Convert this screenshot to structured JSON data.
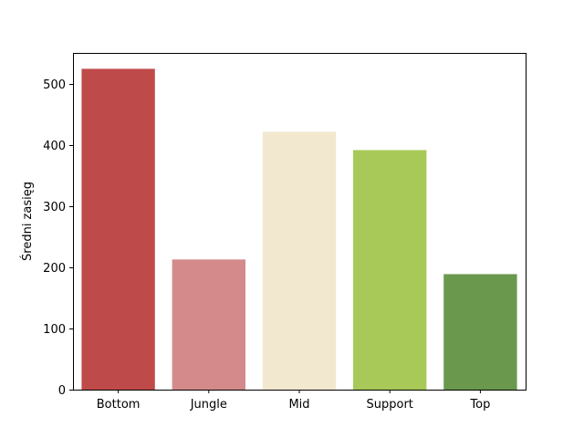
{
  "chart_data": {
    "type": "bar",
    "categories": [
      "Bottom",
      "Jungle",
      "Mid",
      "Support",
      "Top"
    ],
    "values": [
      525,
      213,
      422,
      392,
      189
    ],
    "colors": [
      "#bf4a4a",
      "#d48a8a",
      "#f2e8cf",
      "#a8c958",
      "#6a994e"
    ],
    "title": "",
    "xlabel": "",
    "ylabel": "Średni zasięg",
    "ylim": [
      0,
      551
    ],
    "yticks": [
      0,
      100,
      200,
      300,
      400,
      500
    ],
    "grid": false
  }
}
